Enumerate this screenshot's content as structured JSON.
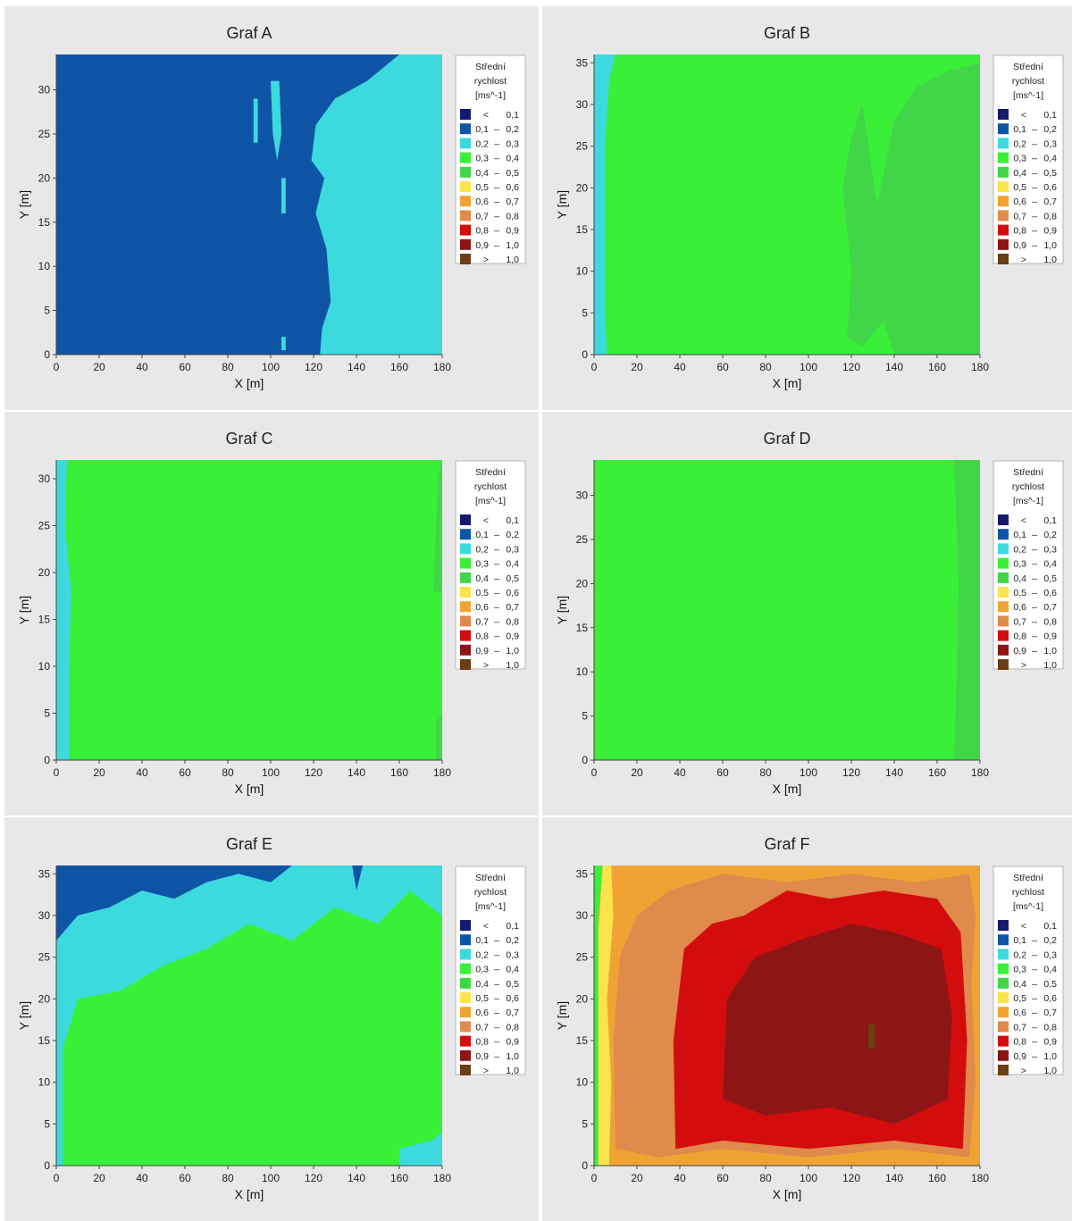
{
  "legend": {
    "title_lines": [
      "Střední",
      "rychlost",
      "[ms^-1]"
    ],
    "classes": [
      {
        "lo": "<",
        "dash": "",
        "hi": "0,1",
        "color": "#151a6f"
      },
      {
        "lo": "0,1",
        "dash": "–",
        "hi": "0,2",
        "color": "#0f55a6"
      },
      {
        "lo": "0,2",
        "dash": "–",
        "hi": "0,3",
        "color": "#3cdadf"
      },
      {
        "lo": "0,3",
        "dash": "–",
        "hi": "0,4",
        "color": "#3aef38"
      },
      {
        "lo": "0,4",
        "dash": "–",
        "hi": "0,5",
        "color": "#40d648"
      },
      {
        "lo": "0,5",
        "dash": "–",
        "hi": "0,6",
        "color": "#fbe34c"
      },
      {
        "lo": "0,6",
        "dash": "–",
        "hi": "0,7",
        "color": "#f0a333"
      },
      {
        "lo": "0,7",
        "dash": "–",
        "hi": "0,8",
        "color": "#e08a4b"
      },
      {
        "lo": "0,8",
        "dash": "–",
        "hi": "0,9",
        "color": "#d30d0d"
      },
      {
        "lo": "0,9",
        "dash": "–",
        "hi": "1,0",
        "color": "#8e1515"
      },
      {
        "lo": ">",
        "dash": "",
        "hi": "1,0",
        "color": "#6b3e16"
      }
    ]
  },
  "chart_data": [
    {
      "type": "heatmap",
      "title": "Graf A",
      "xlabel": "X [m]",
      "ylabel": "Y [m]",
      "xlim": [
        0,
        180
      ],
      "ylim": [
        0,
        34
      ],
      "xticks": [
        0,
        20,
        40,
        60,
        80,
        100,
        120,
        140,
        160,
        180
      ],
      "yticks": [
        0,
        5,
        10,
        15,
        20,
        25,
        30
      ],
      "background_class": 1,
      "regions": [
        {
          "class": 2,
          "points": [
            [
              123,
              0
            ],
            [
              140,
              0
            ],
            [
              180,
              0
            ],
            [
              180,
              34
            ],
            [
              160,
              34
            ],
            [
              145,
              31
            ],
            [
              130,
              29
            ],
            [
              121,
              26
            ],
            [
              119,
              22
            ],
            [
              125,
              20
            ],
            [
              121,
              16
            ],
            [
              126,
              12
            ],
            [
              128,
              6
            ],
            [
              124,
              3
            ]
          ]
        },
        {
          "class": 2,
          "points": [
            [
              100,
              31
            ],
            [
              104,
              31
            ],
            [
              105,
              25
            ],
            [
              103,
              22
            ],
            [
              101,
              25
            ]
          ]
        },
        {
          "class": 2,
          "points": [
            [
              92,
              29
            ],
            [
              94,
              29
            ],
            [
              94,
              24
            ],
            [
              92,
              24
            ]
          ]
        },
        {
          "class": 2,
          "points": [
            [
              105,
              20
            ],
            [
              107,
              20
            ],
            [
              107,
              16
            ],
            [
              105,
              16
            ]
          ]
        },
        {
          "class": 2,
          "points": [
            [
              138,
              19
            ],
            [
              140,
              19
            ],
            [
              140,
              16
            ],
            [
              138,
              16
            ]
          ]
        },
        {
          "class": 2,
          "points": [
            [
              136,
              13
            ],
            [
              139,
              13
            ],
            [
              139,
              7
            ],
            [
              136,
              7
            ]
          ]
        },
        {
          "class": 2,
          "points": [
            [
              105,
              2
            ],
            [
              107,
              2
            ],
            [
              107,
              0.5
            ],
            [
              105,
              0.5
            ]
          ]
        }
      ]
    },
    {
      "type": "heatmap",
      "title": "Graf B",
      "xlabel": "X [m]",
      "ylabel": "Y [m]",
      "xlim": [
        0,
        180
      ],
      "ylim": [
        0,
        36
      ],
      "xticks": [
        0,
        20,
        40,
        60,
        80,
        100,
        120,
        140,
        160,
        180
      ],
      "yticks": [
        0,
        5,
        10,
        15,
        20,
        25,
        30,
        35
      ],
      "background_class": 3,
      "regions": [
        {
          "class": 2,
          "points": [
            [
              0,
              0
            ],
            [
              6,
              0
            ],
            [
              5,
              5
            ],
            [
              5,
              15
            ],
            [
              5,
              25
            ],
            [
              7,
              33
            ],
            [
              10,
              36
            ],
            [
              0,
              36
            ]
          ]
        },
        {
          "class": 4,
          "points": [
            [
              118,
              2
            ],
            [
              120,
              10
            ],
            [
              116,
              20
            ],
            [
              120,
              26
            ],
            [
              125,
              30
            ],
            [
              128,
              25
            ],
            [
              132,
              18
            ],
            [
              140,
              28
            ],
            [
              150,
              32
            ],
            [
              165,
              34
            ],
            [
              180,
              35
            ],
            [
              180,
              0
            ],
            [
              140,
              0
            ],
            [
              135,
              4
            ],
            [
              125,
              1
            ]
          ]
        }
      ]
    },
    {
      "type": "heatmap",
      "title": "Graf C",
      "xlabel": "X [m]",
      "ylabel": "Y [m]",
      "xlim": [
        0,
        180
      ],
      "ylim": [
        0,
        32
      ],
      "xticks": [
        0,
        20,
        40,
        60,
        80,
        100,
        120,
        140,
        160,
        180
      ],
      "yticks": [
        0,
        5,
        10,
        15,
        20,
        25,
        30
      ],
      "background_class": 3,
      "regions": [
        {
          "class": 2,
          "points": [
            [
              0,
              0
            ],
            [
              6,
              0
            ],
            [
              6,
              10
            ],
            [
              7,
              18
            ],
            [
              4,
              25
            ],
            [
              5,
              32
            ],
            [
              0,
              32
            ]
          ]
        },
        {
          "class": 4,
          "points": [
            [
              176,
              18
            ],
            [
              178,
              30
            ],
            [
              180,
              32
            ],
            [
              180,
              18
            ]
          ]
        },
        {
          "class": 4,
          "points": [
            [
              177,
              0
            ],
            [
              180,
              0
            ],
            [
              180,
              5
            ],
            [
              177,
              4
            ]
          ]
        }
      ]
    },
    {
      "type": "heatmap",
      "title": "Graf D",
      "xlabel": "X [m]",
      "ylabel": "Y [m]",
      "xlim": [
        0,
        180
      ],
      "ylim": [
        0,
        34
      ],
      "xticks": [
        0,
        20,
        40,
        60,
        80,
        100,
        120,
        140,
        160,
        180
      ],
      "yticks": [
        0,
        5,
        10,
        15,
        20,
        25,
        30
      ],
      "background_class": 3,
      "regions": [
        {
          "class": 4,
          "points": [
            [
              168,
              0
            ],
            [
              180,
              0
            ],
            [
              180,
              34
            ],
            [
              168,
              34
            ],
            [
              170,
              20
            ],
            [
              169,
              8
            ]
          ]
        }
      ]
    },
    {
      "type": "heatmap",
      "title": "Graf E",
      "xlabel": "X [m]",
      "ylabel": "Y [m]",
      "xlim": [
        0,
        180
      ],
      "ylim": [
        0,
        36
      ],
      "xticks": [
        0,
        20,
        40,
        60,
        80,
        100,
        120,
        140,
        160,
        180
      ],
      "yticks": [
        0,
        5,
        10,
        15,
        20,
        25,
        30,
        35
      ],
      "background_class": 3,
      "regions": [
        {
          "class": 2,
          "points": [
            [
              0,
              0
            ],
            [
              3,
              0
            ],
            [
              3,
              14
            ],
            [
              10,
              20
            ],
            [
              30,
              21
            ],
            [
              50,
              24
            ],
            [
              70,
              26
            ],
            [
              90,
              29
            ],
            [
              110,
              27
            ],
            [
              130,
              31
            ],
            [
              150,
              29
            ],
            [
              165,
              33
            ],
            [
              180,
              30
            ],
            [
              180,
              36
            ],
            [
              0,
              36
            ]
          ]
        },
        {
          "class": 2,
          "points": [
            [
              160,
              2
            ],
            [
              175,
              3
            ],
            [
              180,
              4
            ],
            [
              180,
              0
            ],
            [
              160,
              0
            ]
          ]
        },
        {
          "class": 1,
          "points": [
            [
              0,
              27
            ],
            [
              10,
              30
            ],
            [
              25,
              31
            ],
            [
              40,
              33
            ],
            [
              55,
              32
            ],
            [
              70,
              34
            ],
            [
              85,
              35
            ],
            [
              100,
              34
            ],
            [
              110,
              36
            ],
            [
              0,
              36
            ]
          ]
        },
        {
          "class": 1,
          "points": [
            [
              138,
              36
            ],
            [
              140,
              33
            ],
            [
              143,
              36
            ]
          ]
        }
      ]
    },
    {
      "type": "heatmap",
      "title": "Graf F",
      "xlabel": "X [m]",
      "ylabel": "Y [m]",
      "xlim": [
        0,
        180
      ],
      "ylim": [
        0,
        36
      ],
      "xticks": [
        0,
        20,
        40,
        60,
        80,
        100,
        120,
        140,
        160,
        180
      ],
      "yticks": [
        0,
        5,
        10,
        15,
        20,
        25,
        30,
        35
      ],
      "background_class": 6,
      "regions": [
        {
          "class": 3,
          "points": [
            [
              0,
              0
            ],
            [
              2,
              0
            ],
            [
              2,
              30
            ],
            [
              4,
              36
            ],
            [
              0,
              36
            ]
          ]
        },
        {
          "class": 5,
          "points": [
            [
              2,
              0
            ],
            [
              7,
              0
            ],
            [
              8,
              10
            ],
            [
              6,
              20
            ],
            [
              9,
              30
            ],
            [
              8,
              36
            ],
            [
              4,
              36
            ],
            [
              2,
              28
            ]
          ]
        },
        {
          "class": 7,
          "points": [
            [
              10,
              2
            ],
            [
              30,
              1
            ],
            [
              60,
              2
            ],
            [
              100,
              1
            ],
            [
              140,
              2
            ],
            [
              175,
              1
            ],
            [
              178,
              10
            ],
            [
              176,
              22
            ],
            [
              178,
              30
            ],
            [
              175,
              35
            ],
            [
              150,
              34
            ],
            [
              120,
              35
            ],
            [
              90,
              34
            ],
            [
              60,
              35
            ],
            [
              35,
              33
            ],
            [
              20,
              30
            ],
            [
              12,
              25
            ],
            [
              9,
              15
            ]
          ]
        },
        {
          "class": 8,
          "points": [
            [
              38,
              2
            ],
            [
              60,
              3
            ],
            [
              100,
              2
            ],
            [
              140,
              3
            ],
            [
              172,
              2
            ],
            [
              174,
              15
            ],
            [
              171,
              28
            ],
            [
              160,
              32
            ],
            [
              135,
              33
            ],
            [
              110,
              32
            ],
            [
              90,
              33
            ],
            [
              70,
              30
            ],
            [
              55,
              29
            ],
            [
              42,
              26
            ],
            [
              37,
              15
            ]
          ]
        },
        {
          "class": 9,
          "points": [
            [
              60,
              8
            ],
            [
              80,
              6
            ],
            [
              110,
              7
            ],
            [
              140,
              5
            ],
            [
              165,
              8
            ],
            [
              167,
              18
            ],
            [
              162,
              26
            ],
            [
              140,
              28
            ],
            [
              120,
              29
            ],
            [
              95,
              27
            ],
            [
              75,
              25
            ],
            [
              62,
              20
            ]
          ]
        },
        {
          "class": 10,
          "points": [
            [
              128,
              17
            ],
            [
              131,
              17
            ],
            [
              131,
              14
            ],
            [
              128,
              14
            ]
          ]
        }
      ]
    }
  ]
}
